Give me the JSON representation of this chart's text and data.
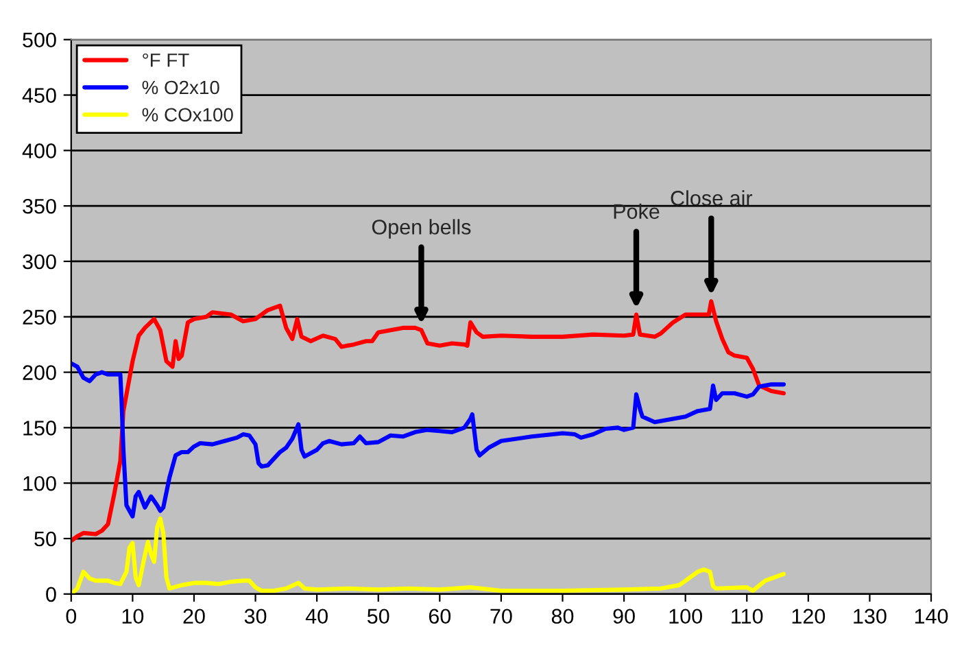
{
  "chart_data": {
    "type": "line",
    "xlim": [
      0,
      140
    ],
    "ylim": [
      0,
      500
    ],
    "xticks": [
      0,
      10,
      20,
      30,
      40,
      50,
      60,
      70,
      80,
      90,
      100,
      110,
      120,
      130,
      140
    ],
    "yticks": [
      0,
      50,
      100,
      150,
      200,
      250,
      300,
      350,
      400,
      450,
      500
    ],
    "grid": "y",
    "legend": "top left",
    "marker": "none",
    "line_style": "solid",
    "series": [
      {
        "name": "°F FT",
        "color": "#ff0000",
        "x": [
          0,
          1,
          2,
          4,
          5,
          6,
          7,
          8,
          8.5,
          9,
          10,
          11,
          12,
          13.5,
          14.5,
          15.5,
          16.5,
          17,
          17.5,
          18,
          19,
          20,
          22,
          23,
          26,
          28,
          30,
          32,
          34,
          35,
          36,
          36.8,
          37.5,
          39,
          41,
          43,
          44,
          46,
          48,
          49,
          50,
          52,
          54,
          56,
          57,
          58,
          60,
          62,
          64,
          64.5,
          65,
          66,
          67,
          70,
          75,
          80,
          85,
          90,
          91.5,
          92,
          92.6,
          95,
          96,
          98,
          100,
          103,
          103.8,
          104.2,
          105,
          106,
          107,
          108,
          110,
          111,
          112,
          114,
          116
        ],
        "values": [
          48,
          52,
          55,
          54,
          57,
          63,
          90,
          120,
          165,
          180,
          210,
          233,
          240,
          248,
          238,
          210,
          205,
          228,
          212,
          215,
          245,
          248,
          250,
          254,
          252,
          246,
          248,
          256,
          260,
          240,
          230,
          248,
          232,
          228,
          233,
          230,
          223,
          225,
          228,
          228,
          236,
          238,
          240,
          240,
          238,
          226,
          224,
          226,
          225,
          224,
          245,
          236,
          232,
          233,
          232,
          232,
          234,
          233,
          234,
          252,
          234,
          232,
          235,
          245,
          252,
          252,
          252,
          264,
          246,
          230,
          218,
          215,
          213,
          203,
          188,
          183,
          181
        ]
      },
      {
        "name": "% O2x10",
        "color": "#0000ff",
        "x": [
          0,
          1,
          2,
          3,
          4,
          5,
          6,
          7,
          8,
          8.2,
          8.5,
          9,
          10,
          10.5,
          11,
          12,
          13,
          14,
          14.5,
          15,
          16,
          17,
          18,
          19,
          20,
          21,
          23,
          25,
          27,
          28,
          29,
          30,
          30.5,
          31,
          32,
          34,
          35,
          36,
          37,
          37.5,
          38,
          40,
          41,
          42,
          44,
          46,
          47,
          48,
          50,
          52,
          54,
          56,
          58,
          60,
          62,
          64,
          65,
          65.3,
          66,
          66.5,
          68,
          70,
          75,
          80,
          82,
          83,
          85,
          87,
          89,
          90,
          91.5,
          92,
          92.7,
          93,
          95,
          100,
          102,
          104,
          104.5,
          105,
          106,
          108,
          110,
          111,
          112,
          114,
          116
        ],
        "values": [
          208,
          205,
          195,
          192,
          198,
          200,
          198,
          198,
          198,
          175,
          130,
          80,
          70,
          88,
          92,
          78,
          88,
          80,
          75,
          78,
          105,
          125,
          128,
          128,
          133,
          136,
          135,
          138,
          141,
          144,
          143,
          135,
          118,
          115,
          116,
          128,
          132,
          140,
          153,
          130,
          124,
          130,
          136,
          138,
          135,
          136,
          142,
          136,
          137,
          143,
          142,
          146,
          148,
          147,
          146,
          150,
          158,
          162,
          130,
          125,
          132,
          138,
          142,
          145,
          144,
          141,
          144,
          149,
          150,
          148,
          150,
          180,
          165,
          160,
          155,
          160,
          165,
          167,
          188,
          175,
          181,
          181,
          178,
          180,
          187,
          189,
          189
        ]
      },
      {
        "name": "% COx100",
        "color": "#ffff00",
        "x": [
          0,
          1,
          2,
          3,
          4,
          6,
          7,
          8,
          9,
          9.5,
          10,
          10.5,
          11,
          12,
          12.5,
          13,
          13.5,
          14,
          14.5,
          15,
          15.5,
          16,
          18,
          20,
          22,
          24,
          26,
          28,
          29,
          30,
          31,
          33,
          35,
          37,
          38,
          40,
          45,
          50,
          55,
          60,
          65,
          70,
          80,
          90,
          96,
          99,
          100,
          102,
          103,
          104,
          104.5,
          105,
          110,
          111,
          113,
          116
        ],
        "values": [
          0,
          5,
          20,
          14,
          12,
          12,
          10,
          9,
          20,
          42,
          46,
          15,
          8,
          35,
          47,
          36,
          29,
          60,
          68,
          55,
          15,
          5,
          8,
          10,
          10,
          9,
          11,
          12,
          12,
          6,
          3,
          3,
          5,
          10,
          5,
          4,
          5,
          4,
          5,
          4,
          6,
          3,
          3,
          4,
          5,
          8,
          12,
          20,
          22,
          20,
          7,
          5,
          6,
          3,
          12,
          18
        ]
      }
    ],
    "annotations": [
      {
        "text": "Open bells",
        "x": 57,
        "y": 238
      },
      {
        "text": "Poke",
        "x": 92,
        "y": 252
      },
      {
        "text": "Close air",
        "x": 104.2,
        "y": 264
      }
    ]
  }
}
